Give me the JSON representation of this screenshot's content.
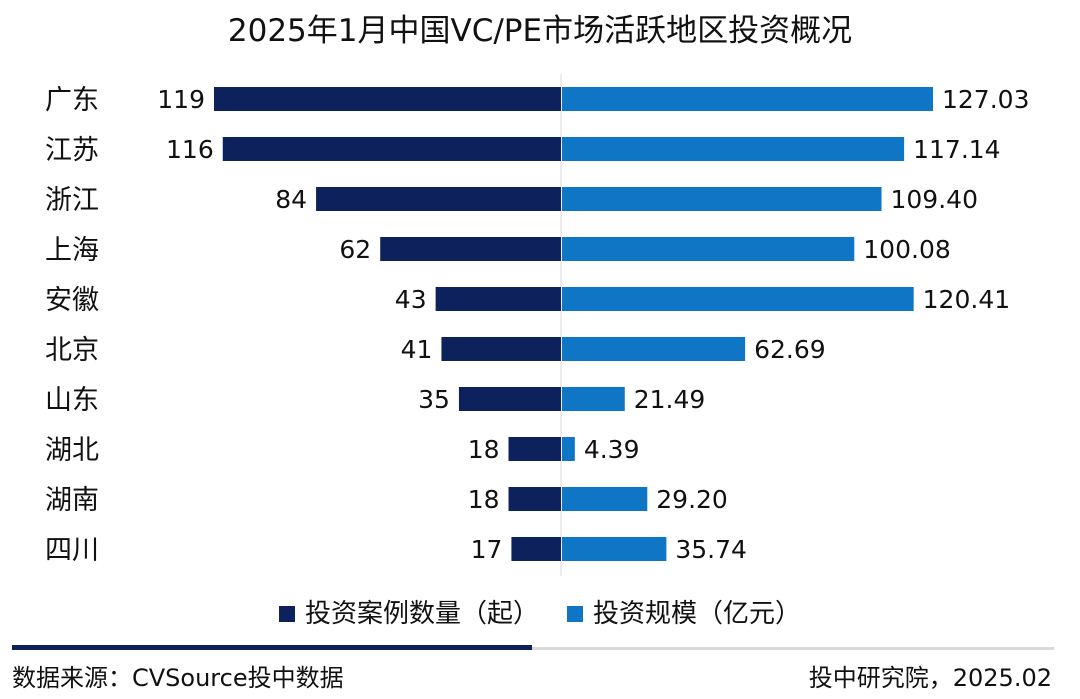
{
  "chart_data": {
    "type": "bar",
    "title": "2025年1月中国VC/PE市场活跃地区投资概况",
    "categories": [
      "广东",
      "江苏",
      "浙江",
      "上海",
      "安徽",
      "北京",
      "山东",
      "湖北",
      "湖南",
      "四川"
    ],
    "series": [
      {
        "name": "投资案例数量（起）",
        "color": "#0d215c",
        "values": [
          119,
          116,
          84,
          62,
          43,
          41,
          35,
          18,
          18,
          17
        ],
        "labels": [
          "119",
          "116",
          "84",
          "62",
          "43",
          "41",
          "35",
          "18",
          "18",
          "17"
        ]
      },
      {
        "name": "投资规模（亿元）",
        "color": "#0f75c5",
        "values": [
          127.03,
          117.14,
          109.4,
          100.08,
          120.41,
          62.69,
          21.49,
          4.39,
          29.2,
          35.74
        ],
        "labels": [
          "127.03",
          "117.14",
          "109.40",
          "100.08",
          "120.41",
          "62.69",
          "21.49",
          "4.39",
          "29.20",
          "35.74"
        ]
      }
    ],
    "layout_style": "diverging butterfly bars, counts extend left, amounts extend right",
    "grid": false,
    "legend_position": "bottom"
  },
  "footer": {
    "source": "数据来源：CVSource投中数据",
    "credit": "投中研究院，2025.02",
    "rule_color": "#0d215c"
  }
}
